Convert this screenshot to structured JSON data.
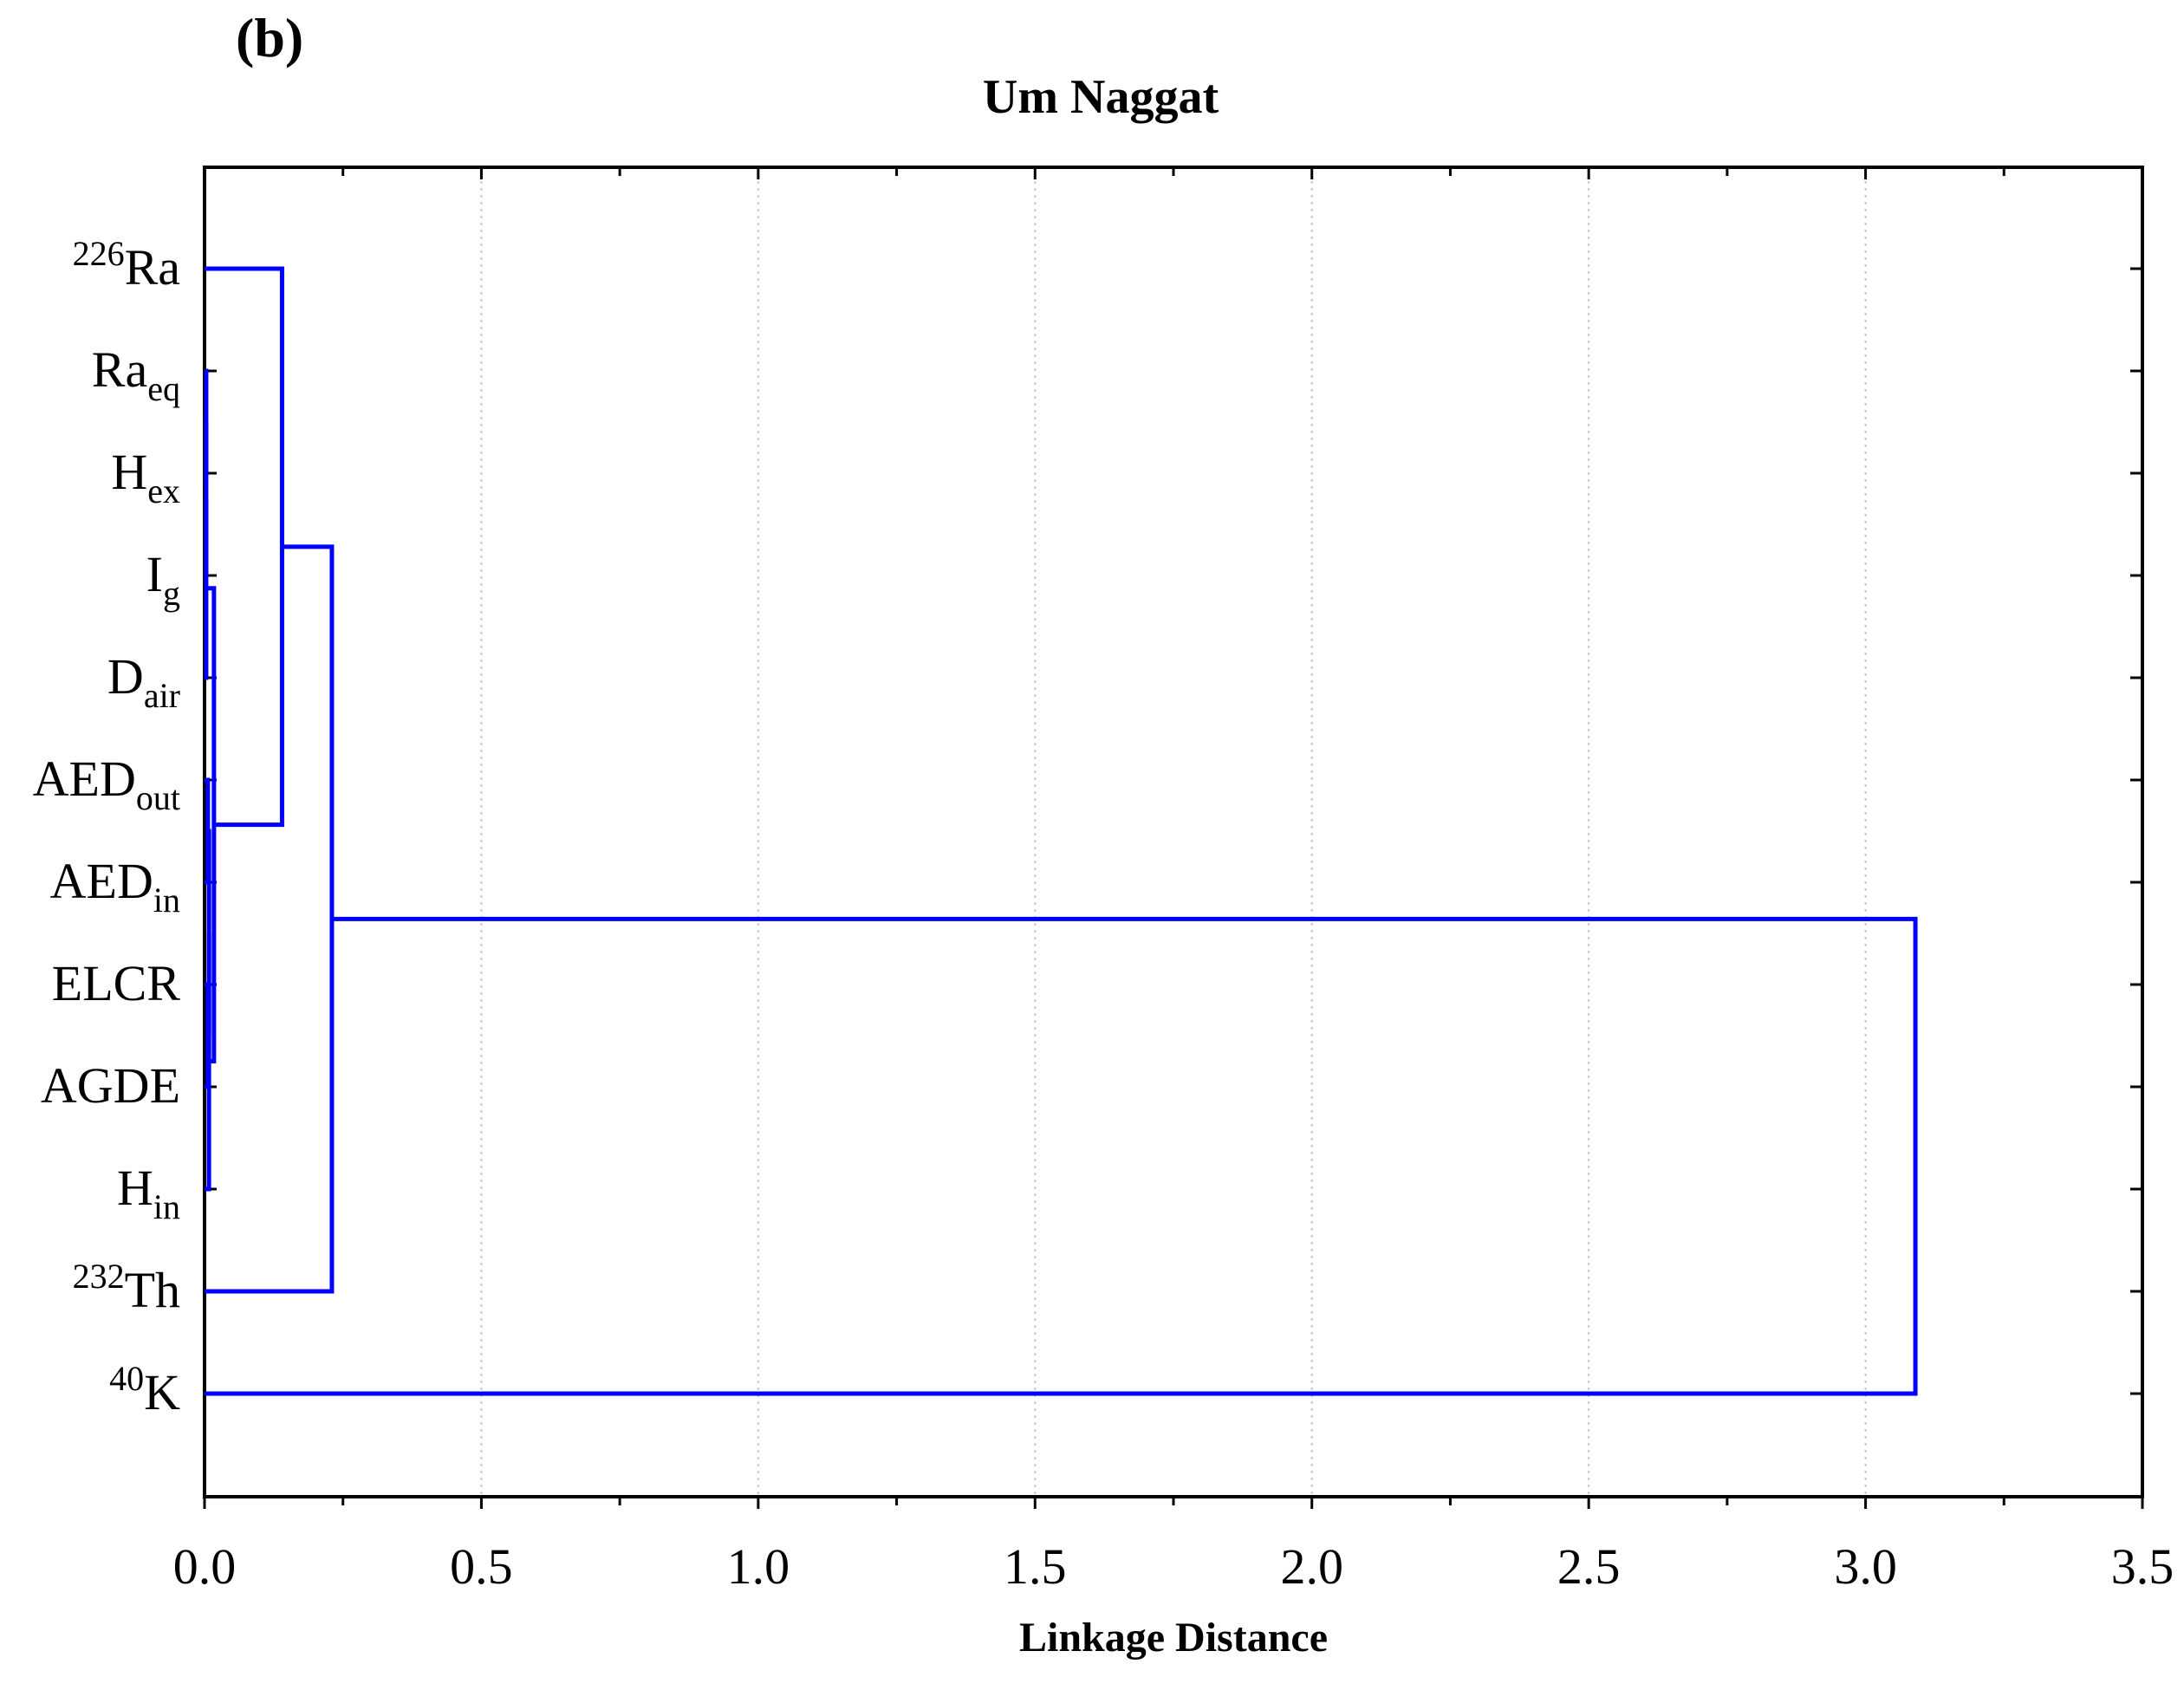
{
  "panel_label": "(b)",
  "chart_data": {
    "type": "dendrogram",
    "title": "Um Naggat",
    "xlabel": "Linkage Distance",
    "ylabel": "",
    "xlim": [
      0,
      3.5
    ],
    "x_ticks": [
      "0.0",
      "0.5",
      "1.0",
      "1.5",
      "2.0",
      "2.5",
      "3.0",
      "3.5"
    ],
    "grid": "vertical dotted",
    "line_color": "#0000ff",
    "leaves": [
      {
        "pre": "226",
        "base": "Ra",
        "sub": ""
      },
      {
        "pre": "",
        "base": "Ra",
        "sub": "eq"
      },
      {
        "pre": "",
        "base": "H",
        "sub": "ex"
      },
      {
        "pre": "",
        "base": "I",
        "sub": "g"
      },
      {
        "pre": "",
        "base": "D",
        "sub": "air"
      },
      {
        "pre": "",
        "base": "AED",
        "sub": "out"
      },
      {
        "pre": "",
        "base": "AED",
        "sub": "in"
      },
      {
        "pre": "",
        "base": "ELCR",
        "sub": ""
      },
      {
        "pre": "",
        "base": "AGDE",
        "sub": ""
      },
      {
        "pre": "",
        "base": "H",
        "sub": "in"
      },
      {
        "pre": "232",
        "base": "Th",
        "sub": ""
      },
      {
        "pre": "40",
        "base": "K",
        "sub": ""
      }
    ],
    "merges": [
      {
        "a": 1,
        "b": 2,
        "distance": 0.003
      },
      {
        "a": "m0",
        "b": 3,
        "distance": 0.003
      },
      {
        "a": "m1",
        "b": 4,
        "distance": 0.003
      },
      {
        "a": 5,
        "b": 6,
        "distance": 0.006
      },
      {
        "a": 7,
        "b": 8,
        "distance": 0.006
      },
      {
        "a": "m3",
        "b": "m4",
        "distance": 0.008
      },
      {
        "a": "m5",
        "b": 9,
        "distance": 0.008
      },
      {
        "a": "m2",
        "b": "m6",
        "distance": 0.017
      },
      {
        "a": 0,
        "b": "m7",
        "distance": 0.14
      },
      {
        "a": "m8",
        "b": 10,
        "distance": 0.23
      },
      {
        "a": "m9",
        "b": 11,
        "distance": 3.09
      }
    ]
  }
}
